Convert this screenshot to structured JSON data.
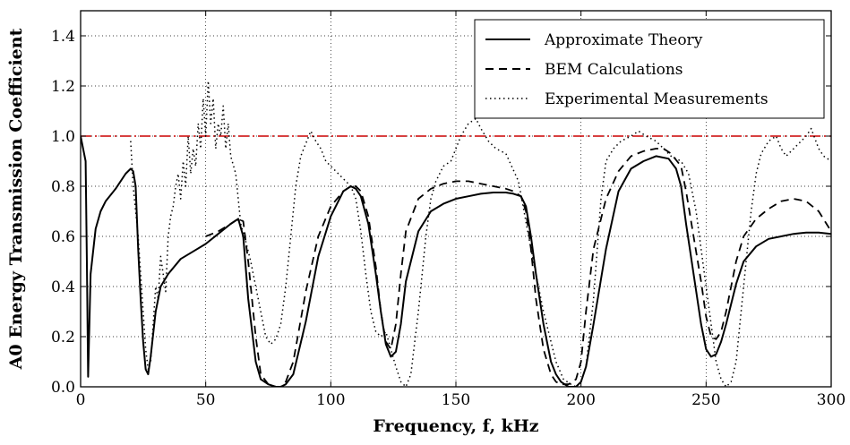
{
  "chart_data": {
    "type": "line",
    "xlabel": "Frequency, f, kHz",
    "ylabel": "A0 Energy Transmission Coefficient",
    "xlim": [
      0,
      300
    ],
    "ylim": [
      0,
      1.5
    ],
    "xticks": [
      "0",
      "50",
      "100",
      "150",
      "200",
      "250",
      "300"
    ],
    "yticks": [
      "0.0",
      "0.2",
      "0.4",
      "0.6",
      "0.8",
      "1.0",
      "1.2",
      "1.4"
    ],
    "grid": true,
    "legend_position": "top-right",
    "reference_line": {
      "y": 1.0,
      "color": "#cc0000",
      "style": "dash-dot"
    },
    "series": [
      {
        "name": "Approximate Theory",
        "style": "solid",
        "color": "#000000",
        "x": [
          0,
          1,
          2,
          2.5,
          3,
          4,
          6,
          8,
          10,
          14,
          18,
          20,
          21,
          22,
          23,
          24,
          25,
          26,
          27,
          28,
          30,
          32,
          35,
          40,
          45,
          50,
          55,
          60,
          63,
          65,
          67,
          70,
          72,
          75,
          78,
          80,
          82,
          85,
          90,
          95,
          100,
          105,
          108,
          110,
          112,
          115,
          118,
          120,
          122,
          124,
          126,
          128,
          130,
          135,
          140,
          145,
          150,
          155,
          160,
          165,
          170,
          173,
          176,
          178,
          180,
          182,
          185,
          188,
          190,
          192,
          195,
          198,
          200,
          202,
          205,
          210,
          215,
          220,
          225,
          230,
          235,
          238,
          240,
          242,
          245,
          248,
          250,
          252,
          254,
          256,
          258,
          260,
          262,
          265,
          270,
          275,
          280,
          285,
          290,
          295,
          300
        ],
        "y": [
          1.0,
          0.95,
          0.9,
          0.5,
          0.04,
          0.45,
          0.63,
          0.7,
          0.74,
          0.79,
          0.85,
          0.87,
          0.86,
          0.8,
          0.55,
          0.35,
          0.18,
          0.07,
          0.05,
          0.12,
          0.3,
          0.4,
          0.45,
          0.51,
          0.54,
          0.57,
          0.61,
          0.65,
          0.67,
          0.6,
          0.35,
          0.1,
          0.03,
          0.01,
          0.0,
          0.0,
          0.01,
          0.05,
          0.26,
          0.52,
          0.68,
          0.78,
          0.8,
          0.79,
          0.76,
          0.65,
          0.45,
          0.3,
          0.17,
          0.12,
          0.14,
          0.25,
          0.42,
          0.62,
          0.7,
          0.73,
          0.75,
          0.76,
          0.77,
          0.775,
          0.775,
          0.77,
          0.76,
          0.72,
          0.6,
          0.45,
          0.25,
          0.1,
          0.05,
          0.02,
          0.0,
          0.0,
          0.02,
          0.08,
          0.25,
          0.55,
          0.78,
          0.87,
          0.9,
          0.92,
          0.91,
          0.87,
          0.8,
          0.65,
          0.45,
          0.25,
          0.15,
          0.12,
          0.13,
          0.18,
          0.25,
          0.33,
          0.41,
          0.5,
          0.56,
          0.59,
          0.6,
          0.61,
          0.615,
          0.615,
          0.61
        ]
      },
      {
        "name": "BEM Calculations",
        "style": "dashed",
        "color": "#000000",
        "x": [
          50,
          55,
          60,
          63,
          65,
          67,
          70,
          72,
          75,
          78,
          80,
          82,
          85,
          90,
          95,
          100,
          105,
          108,
          110,
          112,
          115,
          118,
          120,
          122,
          124,
          126,
          128,
          130,
          135,
          140,
          145,
          150,
          155,
          160,
          165,
          170,
          173,
          176,
          178,
          180,
          182,
          185,
          188,
          190,
          192,
          195,
          198,
          200,
          202,
          205,
          210,
          215,
          220,
          225,
          230,
          233,
          236,
          240,
          242,
          245,
          248,
          250,
          252,
          254,
          256,
          258,
          260,
          262,
          265,
          270,
          275,
          280,
          285,
          290,
          295,
          300
        ],
        "y": [
          0.6,
          0.62,
          0.65,
          0.67,
          0.66,
          0.5,
          0.2,
          0.05,
          0.01,
          0.0,
          0.0,
          0.02,
          0.1,
          0.38,
          0.6,
          0.72,
          0.78,
          0.8,
          0.8,
          0.78,
          0.68,
          0.48,
          0.3,
          0.18,
          0.15,
          0.25,
          0.45,
          0.62,
          0.75,
          0.79,
          0.81,
          0.82,
          0.82,
          0.81,
          0.8,
          0.79,
          0.78,
          0.76,
          0.7,
          0.55,
          0.35,
          0.15,
          0.05,
          0.02,
          0.01,
          0.01,
          0.03,
          0.1,
          0.3,
          0.55,
          0.75,
          0.86,
          0.92,
          0.94,
          0.95,
          0.95,
          0.93,
          0.88,
          0.78,
          0.6,
          0.42,
          0.28,
          0.2,
          0.19,
          0.22,
          0.3,
          0.4,
          0.5,
          0.6,
          0.67,
          0.71,
          0.74,
          0.75,
          0.74,
          0.7,
          0.62
        ]
      },
      {
        "name": "Experimental Measurements",
        "style": "dotted",
        "color": "#000000",
        "x": [
          20,
          21,
          22,
          23,
          24,
          25,
          26,
          27,
          28,
          29,
          30,
          31,
          32,
          33,
          34,
          35,
          36,
          37,
          38,
          39,
          40,
          41,
          42,
          43,
          44,
          45,
          46,
          47,
          48,
          49,
          50,
          51,
          52,
          53,
          54,
          55,
          56,
          57,
          58,
          59,
          60,
          62,
          64,
          66,
          68,
          70,
          72,
          74,
          76,
          78,
          80,
          82,
          84,
          86,
          88,
          90,
          92,
          94,
          96,
          98,
          100,
          102,
          104,
          106,
          108,
          110,
          112,
          114,
          116,
          118,
          120,
          122,
          124,
          126,
          128,
          130,
          132,
          135,
          138,
          140,
          142,
          145,
          148,
          150,
          152,
          155,
          158,
          160,
          163,
          166,
          170,
          175,
          180,
          185,
          190,
          193,
          196,
          198,
          200,
          202,
          205,
          208,
          210,
          213,
          216,
          220,
          223,
          226,
          230,
          233,
          236,
          240,
          243,
          246,
          248,
          250,
          252,
          254,
          256,
          258,
          260,
          262,
          264,
          266,
          268,
          270,
          272,
          275,
          278,
          280,
          282,
          285,
          288,
          290,
          292,
          295,
          297,
          300
        ],
        "y": [
          0.98,
          0.8,
          0.7,
          0.6,
          0.45,
          0.3,
          0.15,
          0.07,
          0.1,
          0.25,
          0.4,
          0.35,
          0.52,
          0.45,
          0.38,
          0.6,
          0.68,
          0.72,
          0.8,
          0.85,
          0.75,
          0.9,
          0.8,
          1.0,
          0.85,
          0.95,
          0.88,
          1.05,
          0.95,
          1.15,
          1.0,
          1.22,
          1.05,
          1.15,
          0.95,
          1.05,
          1.0,
          1.12,
          0.95,
          1.05,
          0.92,
          0.85,
          0.65,
          0.58,
          0.5,
          0.4,
          0.3,
          0.2,
          0.17,
          0.19,
          0.25,
          0.4,
          0.6,
          0.8,
          0.92,
          0.97,
          1.02,
          0.98,
          0.95,
          0.9,
          0.88,
          0.86,
          0.84,
          0.82,
          0.8,
          0.75,
          0.62,
          0.45,
          0.3,
          0.22,
          0.2,
          0.22,
          0.15,
          0.08,
          0.02,
          0.0,
          0.05,
          0.3,
          0.6,
          0.75,
          0.82,
          0.88,
          0.9,
          0.95,
          1.0,
          1.05,
          1.07,
          1.03,
          0.98,
          0.95,
          0.93,
          0.82,
          0.55,
          0.3,
          0.1,
          0.03,
          0.01,
          0.0,
          0.02,
          0.08,
          0.35,
          0.75,
          0.9,
          0.95,
          0.98,
          1.0,
          1.02,
          1.0,
          0.98,
          0.95,
          0.92,
          0.9,
          0.85,
          0.7,
          0.55,
          0.4,
          0.25,
          0.1,
          0.03,
          0.0,
          0.02,
          0.1,
          0.3,
          0.5,
          0.7,
          0.85,
          0.93,
          0.98,
          1.0,
          0.95,
          0.92,
          0.95,
          0.98,
          1.0,
          1.03,
          0.95,
          0.92,
          0.9
        ]
      }
    ]
  }
}
